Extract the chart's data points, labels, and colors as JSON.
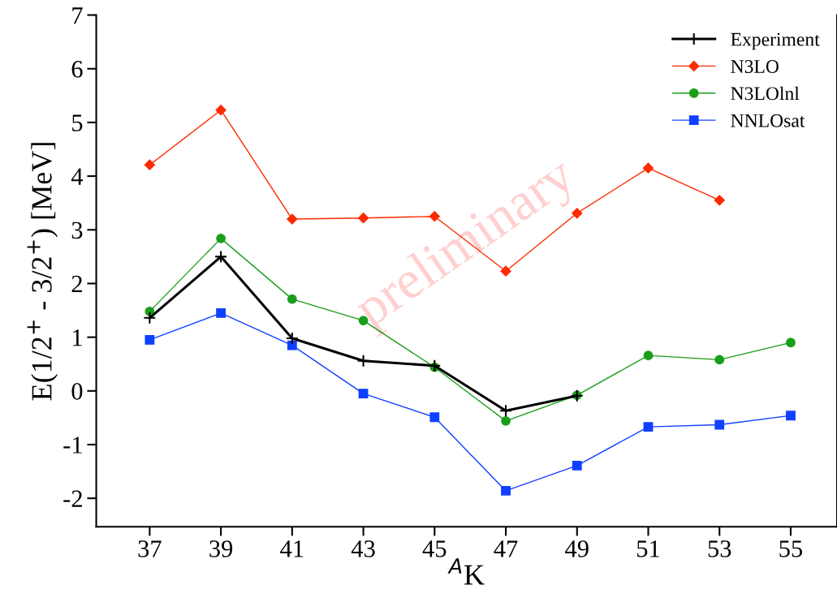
{
  "chart_data": {
    "type": "line",
    "xlabel": "$^{A}$K",
    "ylabel": "E(1/2$^{+}$ - 3/2$^{+}$) [MeV]",
    "x": [
      37,
      39,
      41,
      43,
      45,
      47,
      49,
      51,
      53,
      55
    ],
    "series": [
      {
        "name": "Experiment",
        "color": "#000000",
        "marker": "cross",
        "values": [
          1.36,
          2.5,
          0.98,
          0.56,
          0.47,
          -0.37,
          -0.09,
          null,
          null,
          null
        ]
      },
      {
        "name": "N3LO",
        "color": "#ff2a00",
        "marker": "diamond",
        "values": [
          4.21,
          5.23,
          3.2,
          3.22,
          3.25,
          2.23,
          3.31,
          4.15,
          3.55,
          null
        ]
      },
      {
        "name": "N3LOlnl",
        "color": "#1a9e1a",
        "marker": "circle",
        "values": [
          1.48,
          2.84,
          1.71,
          1.31,
          0.44,
          -0.56,
          -0.08,
          0.66,
          0.58,
          0.9
        ]
      },
      {
        "name": "NNLOsat",
        "color": "#1040ff",
        "marker": "square",
        "values": [
          0.95,
          1.45,
          0.85,
          -0.05,
          -0.49,
          -1.86,
          -1.39,
          -0.67,
          -0.63,
          -0.46
        ]
      }
    ],
    "xlim": [
      35.5,
      56.3
    ],
    "ylim": [
      -2.53,
      7
    ],
    "xticks": [
      37,
      39,
      41,
      43,
      45,
      47,
      49,
      51,
      53,
      55
    ],
    "yticks": [
      -2,
      -1,
      0,
      1,
      2,
      3,
      4,
      5,
      6,
      7
    ],
    "annotations": [
      "preliminary"
    ],
    "legend": "top right",
    "grid": false,
    "line_style": "solid"
  }
}
